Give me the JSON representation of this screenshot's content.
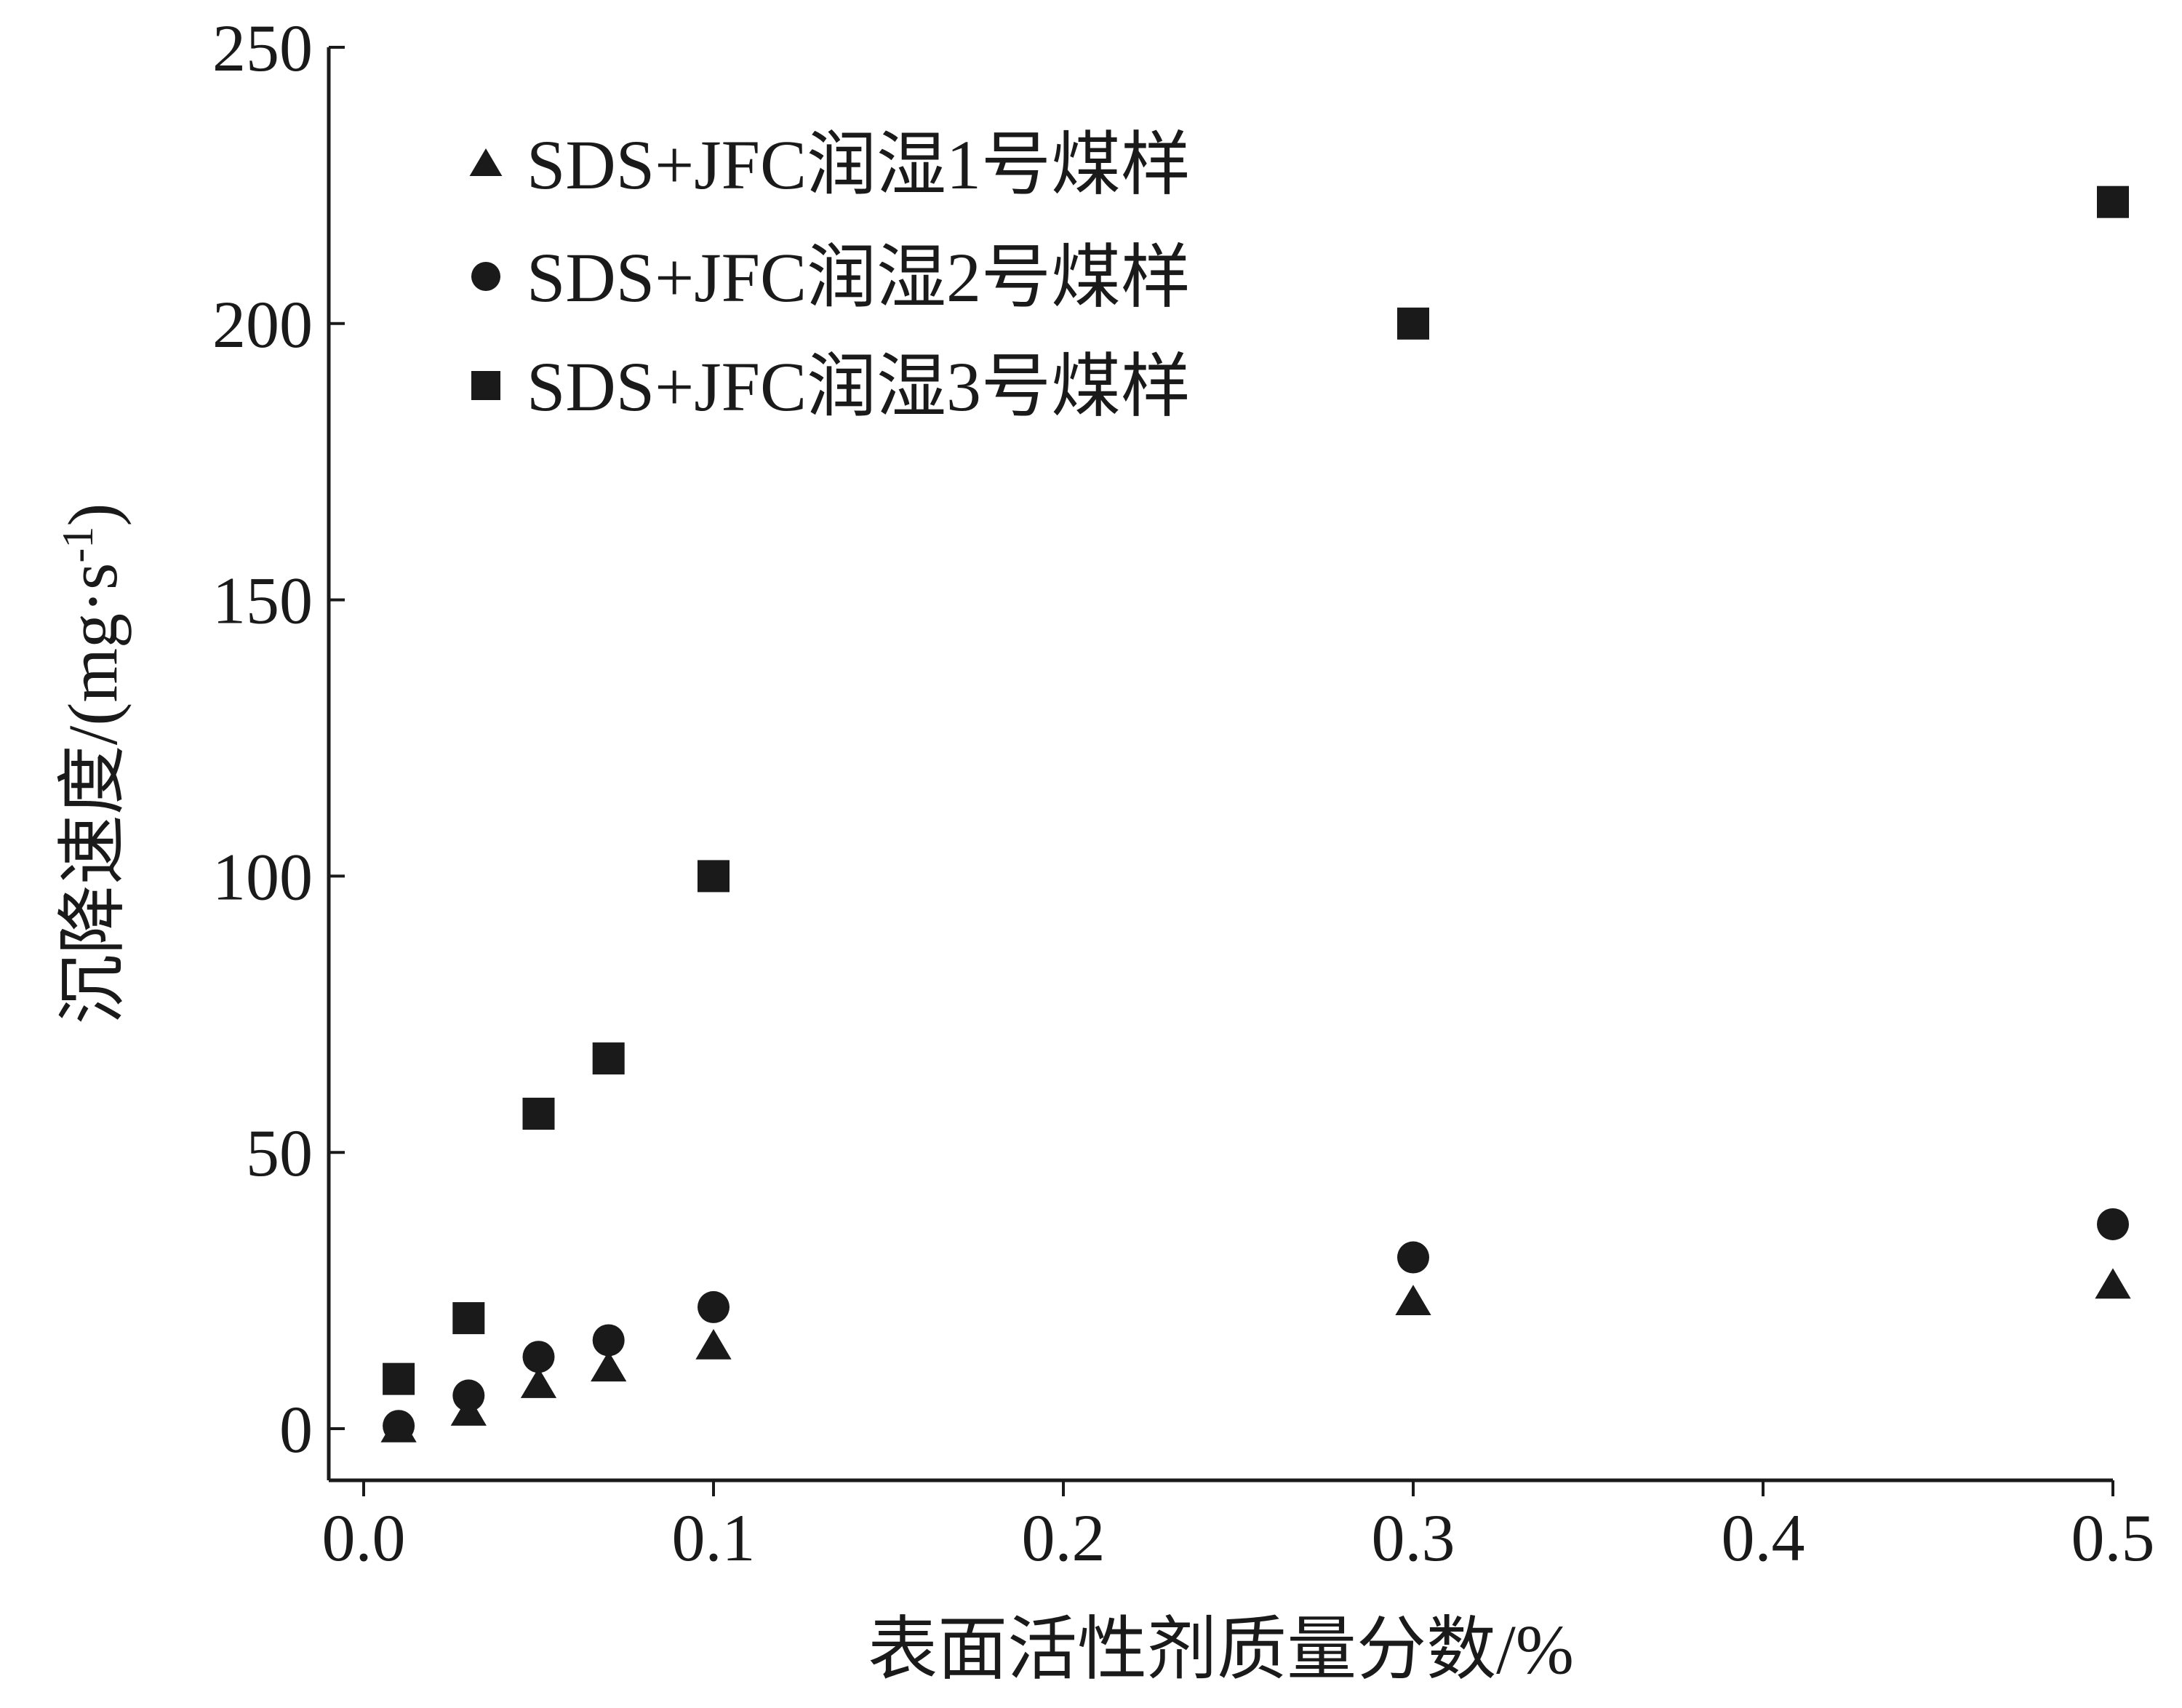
{
  "chart_data": {
    "type": "scatter",
    "xlabel": "表面活性剂质量分数/%",
    "ylabel": "沉降速度/(mg·s",
    "ylabel_sup": "-1",
    "ylabel_tail": ")",
    "xlim": [
      0.0,
      0.5
    ],
    "ylim": [
      0,
      250
    ],
    "xticks": [
      0.0,
      0.1,
      0.2,
      0.3,
      0.4,
      0.5
    ],
    "xtick_labels": [
      "0.0",
      "0.1",
      "0.2",
      "0.3",
      "0.4",
      "0.5"
    ],
    "yticks": [
      0,
      50,
      100,
      150,
      200,
      250
    ],
    "ytick_labels": [
      "0",
      "50",
      "100",
      "150",
      "200",
      "250"
    ],
    "grid": false,
    "legend_position": "top-left",
    "x": [
      0.01,
      0.03,
      0.05,
      0.07,
      0.1,
      0.3,
      0.5
    ],
    "series": [
      {
        "name": "SDS+JFC润湿1号煤样",
        "marker": "triangle",
        "values": [
          0,
          3,
          8,
          11,
          15,
          23,
          26
        ]
      },
      {
        "name": "SDS+JFC润湿2号煤样",
        "marker": "circle",
        "values": [
          0.5,
          6,
          13,
          16,
          22,
          31,
          37
        ]
      },
      {
        "name": "SDS+JFC润湿3号煤样",
        "marker": "square",
        "values": [
          9,
          20,
          57,
          67,
          100,
          200,
          222
        ]
      }
    ],
    "marker_color": "#1a1a1a"
  }
}
